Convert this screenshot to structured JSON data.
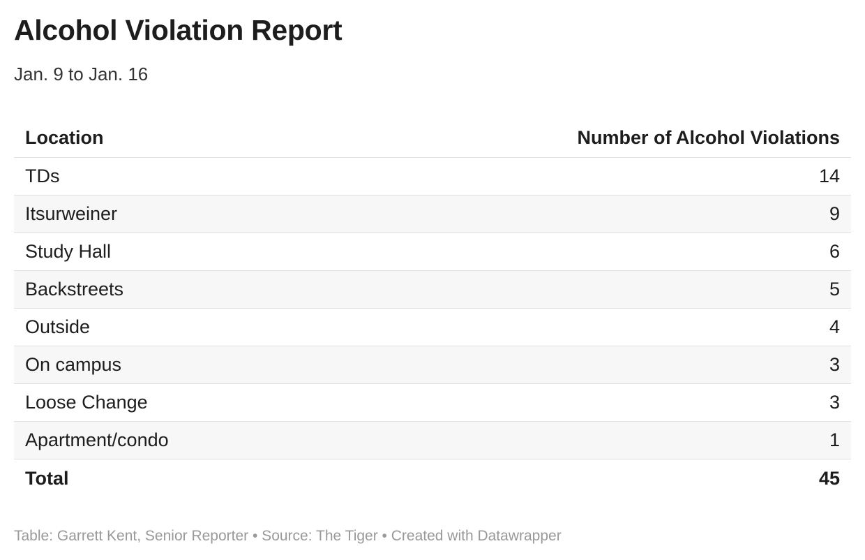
{
  "header": {
    "title": "Alcohol Violation Report",
    "subtitle": "Jan. 9 to Jan. 16"
  },
  "table": {
    "columns": [
      "Location",
      "Number of Alcohol Violations"
    ],
    "rows": [
      [
        "TDs",
        14
      ],
      [
        "Itsurweiner",
        9
      ],
      [
        "Study Hall",
        6
      ],
      [
        "Backstreets",
        5
      ],
      [
        "Outside",
        4
      ],
      [
        "On campus",
        3
      ],
      [
        "Loose Change",
        3
      ],
      [
        "Apartment/condo",
        1
      ]
    ],
    "total": [
      "Total",
      45
    ]
  },
  "footer": "Table: Garrett Kent, Senior Reporter • Source: The Tiger • Created with Datawrapper"
}
